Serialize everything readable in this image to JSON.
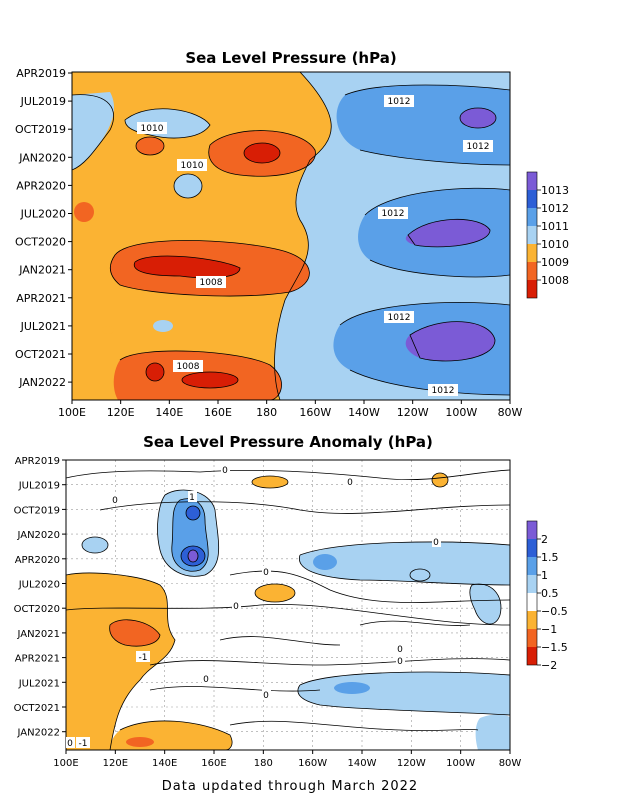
{
  "colors": {
    "c1008": "#d81e05",
    "c1009": "#f26522",
    "c1010": "#fbb333",
    "c1011": "#a8d2f2",
    "c1012": "#5aa0e8",
    "c1013": "#2d5fd6",
    "c1014": "#7b5bd6",
    "a_n2": "#d81e05",
    "a_n15": "#f26522",
    "a_n1": "#fbb333",
    "a_zero": "#ffffff",
    "a_p05": "#a8d2f2",
    "a_p1": "#5aa0e8",
    "a_p15": "#2d5fd6",
    "a_p2": "#7b5bd6"
  },
  "footer": "Data updated through March 2022",
  "chart_data": [
    {
      "type": "heatmap",
      "title": "Sea Level Pressure (hPa)",
      "xlabel": "",
      "ylabel": "",
      "x_ticks": [
        "100E",
        "120E",
        "140E",
        "160E",
        "180",
        "160W",
        "140W",
        "120W",
        "100W",
        "80W"
      ],
      "y_ticks": [
        "APR2019",
        "JUL2019",
        "OCT2019",
        "JAN2020",
        "APR2020",
        "JUL2020",
        "OCT2020",
        "JAN2021",
        "APR2021",
        "JUL2021",
        "OCT2021",
        "JAN2022"
      ],
      "colorbar": [
        "1008",
        "1009",
        "1010",
        "1011",
        "1012",
        "1013"
      ],
      "contour_labels": [
        "1010",
        "1010",
        "1012",
        "1012",
        "1012",
        "1008",
        "1012",
        "1008",
        "1012"
      ]
    },
    {
      "type": "heatmap",
      "title": "Sea Level Pressure Anomaly (hPa)",
      "xlabel": "",
      "ylabel": "",
      "x_ticks": [
        "100E",
        "120E",
        "140E",
        "160E",
        "180",
        "160W",
        "140W",
        "120W",
        "100W",
        "80W"
      ],
      "y_ticks": [
        "APR2019",
        "JUL2019",
        "OCT2019",
        "JAN2020",
        "APR2020",
        "JUL2020",
        "OCT2020",
        "JAN2021",
        "APR2021",
        "JUL2021",
        "OCT2021",
        "JAN2022"
      ],
      "colorbar": [
        "−2",
        "−1.5",
        "−1",
        "−0.5",
        "0.5",
        "1",
        "1.5",
        "2"
      ],
      "contour_labels": [
        "0",
        "0",
        "0",
        "0",
        "1",
        "0",
        "0",
        "0",
        "0",
        "0",
        "-1",
        "0",
        "0",
        "-1"
      ]
    }
  ]
}
